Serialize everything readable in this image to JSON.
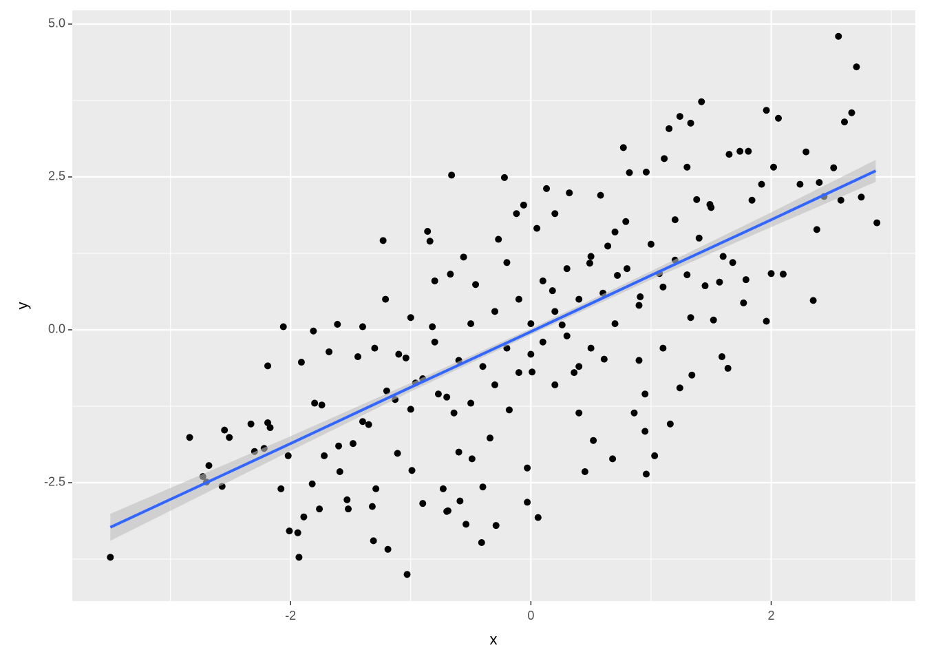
{
  "chart_data": {
    "type": "scatter",
    "x_label": "x",
    "y_label": "y",
    "xlim": [
      -3.817,
      3.2
    ],
    "ylim": [
      -4.437,
      5.225
    ],
    "xticks": [
      -2,
      0,
      2
    ],
    "yticks": [
      -2.5,
      {
        "value": 0,
        "label": "0.0"
      },
      2.5,
      {
        "value": 5,
        "label": "5.0"
      }
    ],
    "xminor": [
      -3,
      -1,
      1,
      3
    ],
    "yminor": [
      -3.75,
      -1.25,
      1.25,
      3.75
    ],
    "grid": true,
    "color": "#000000",
    "x": [
      -3.5,
      -2.84,
      -2.73,
      -2.68,
      -2.7,
      -2.57,
      -2.55,
      -2.51,
      -2.33,
      -2.3,
      -2.22,
      -2.19,
      -2.19,
      -2.17,
      -2.08,
      -2.06,
      -2.02,
      -2.01,
      -1.94,
      -1.93,
      -1.89,
      -1.91,
      -1.82,
      -1.81,
      -1.76,
      -1.74,
      -1.72,
      -1.68,
      -1.61,
      -1.59,
      -1.53,
      -1.52,
      -1.48,
      -1.44,
      -1.4,
      -1.35,
      -1.32,
      -1.31,
      -1.29,
      -1.23,
      -1.21,
      -1.19,
      -1.13,
      -1.11,
      -1.04,
      -1.03,
      -0.99,
      -0.96,
      -0.9,
      -0.86,
      -0.84,
      -0.82,
      -0.77,
      -0.73,
      -0.7,
      -0.69,
      -0.67,
      -0.66,
      -0.64,
      -0.59,
      -0.56,
      -0.54,
      -0.49,
      -0.46,
      -0.41,
      -0.4,
      -0.34,
      -0.29,
      -0.27,
      -0.22,
      -0.18,
      -0.12,
      -0.06,
      -0.03,
      -0.03,
      0.01,
      0.05,
      0.06,
      0.13,
      0.18,
      0.26,
      0.32,
      0.36,
      0.4,
      0.45,
      0.49,
      0.52,
      0.58,
      0.61,
      0.64,
      0.68,
      0.72,
      0.77,
      0.79,
      0.82,
      0.86,
      0.91,
      0.95,
      0.96,
      0.95,
      0.96,
      1.03,
      1.07,
      1.11,
      1.15,
      1.16,
      1.2,
      1.24,
      1.24,
      1.3,
      1.33,
      1.33,
      1.34,
      1.38,
      1.42,
      1.45,
      1.49,
      1.52,
      1.57,
      1.59,
      1.64,
      1.65,
      1.68,
      1.74,
      1.77,
      1.79,
      1.81,
      1.84,
      1.92,
      1.96,
      1.96,
      2.0,
      2.02,
      2.06,
      2.1,
      2.24,
      2.29,
      2.35,
      2.38,
      2.4,
      2.44,
      2.52,
      2.56,
      2.58,
      2.61,
      2.67,
      2.71,
      2.75,
      2.88,
      -1.2,
      -1.1,
      -1.0,
      -0.9,
      -0.8,
      -0.7,
      -0.6,
      -0.5,
      -0.5,
      -0.4,
      -0.3,
      -0.3,
      -0.2,
      -0.1,
      -0.1,
      0,
      0,
      0.1,
      0.1,
      0.2,
      0.2,
      0.3,
      0.3,
      0.4,
      0.5,
      0.5,
      0.6,
      0.7,
      0.8,
      0.9,
      1.0,
      1.1,
      1.2,
      1.3,
      1.4,
      1.5,
      -1.4,
      -1.3,
      -1.6,
      -0.2,
      0.4,
      -0.6,
      0.7,
      -1.0,
      0.9,
      1.6,
      -1.8,
      -0.8,
      0.2,
      1.1
    ],
    "values": [
      -3.72,
      -1.76,
      -2.4,
      -2.22,
      -2.49,
      -2.56,
      -1.64,
      -1.76,
      -1.54,
      -1.99,
      -1.94,
      -0.59,
      -1.52,
      -1.6,
      -2.6,
      0.05,
      -2.06,
      -3.29,
      -3.32,
      -3.72,
      -3.06,
      -0.53,
      -2.52,
      -0.02,
      -2.93,
      -1.23,
      -2.06,
      -0.36,
      0.09,
      -2.32,
      -2.78,
      -2.93,
      -1.86,
      -0.44,
      0.05,
      -1.55,
      -2.89,
      -3.45,
      -2.6,
      1.46,
      0.5,
      -3.59,
      -1.14,
      -2.02,
      -0.46,
      -4.0,
      -2.3,
      -0.87,
      -2.84,
      1.61,
      1.45,
      0.05,
      -1.05,
      -2.6,
      -2.97,
      -2.96,
      0.91,
      2.53,
      -1.36,
      -2.8,
      1.19,
      -3.18,
      -2.11,
      0.74,
      -3.48,
      -2.57,
      -1.77,
      -3.2,
      1.48,
      2.49,
      -1.31,
      1.9,
      2.04,
      -2.26,
      -2.82,
      -0.69,
      1.66,
      -3.07,
      2.31,
      0.64,
      0.08,
      2.24,
      -0.7,
      -1.36,
      -2.32,
      1.09,
      -1.81,
      2.2,
      -0.48,
      1.37,
      -2.11,
      0.89,
      2.98,
      1.77,
      2.57,
      -1.36,
      0.54,
      -1.05,
      -2.36,
      -1.66,
      2.58,
      -2.06,
      0.92,
      2.8,
      3.29,
      -1.54,
      1.14,
      3.49,
      -0.95,
      2.66,
      0.2,
      3.38,
      -0.74,
      2.13,
      3.73,
      0.72,
      2.05,
      0.16,
      0.78,
      -0.44,
      -0.63,
      2.87,
      1.1,
      2.92,
      0.44,
      0.82,
      2.92,
      2.12,
      2.38,
      3.59,
      0.14,
      0.92,
      2.66,
      3.46,
      0.91,
      2.38,
      2.91,
      0.48,
      1.64,
      2.41,
      2.18,
      2.65,
      4.8,
      2.12,
      3.4,
      3.55,
      4.3,
      2.17,
      1.75,
      -1.0,
      -0.4,
      -1.3,
      -0.8,
      -0.2,
      -1.1,
      -0.5,
      0.1,
      -1.2,
      -0.6,
      0.3,
      -0.9,
      -0.3,
      0.5,
      -0.7,
      0.1,
      -0.4,
      0.8,
      -0.2,
      0.3,
      -0.9,
      1.0,
      -0.1,
      0.5,
      -0.3,
      1.2,
      0.6,
      0.1,
      1.0,
      0.4,
      1.4,
      0.7,
      1.8,
      0.9,
      1.5,
      2.0,
      -1.5,
      -0.3,
      -1.9,
      1.1,
      -0.6,
      -2.0,
      1.6,
      0.2,
      -0.5,
      1.2,
      -1.2,
      0.8,
      1.9,
      -0.3
    ],
    "fit": {
      "color": "#3366ff",
      "band_color": "#bebebe",
      "x": [
        -3.5,
        -2,
        -1,
        0,
        1,
        2,
        2.87
      ],
      "y": [
        -3.23,
        -1.86,
        -0.94,
        -0.03,
        0.89,
        1.8,
        2.6
      ],
      "lower": [
        -3.45,
        -1.98,
        -1.01,
        -0.08,
        0.82,
        1.68,
        2.42
      ],
      "upper": [
        -3.01,
        -1.74,
        -0.87,
        0.02,
        0.96,
        1.92,
        2.78
      ]
    }
  }
}
